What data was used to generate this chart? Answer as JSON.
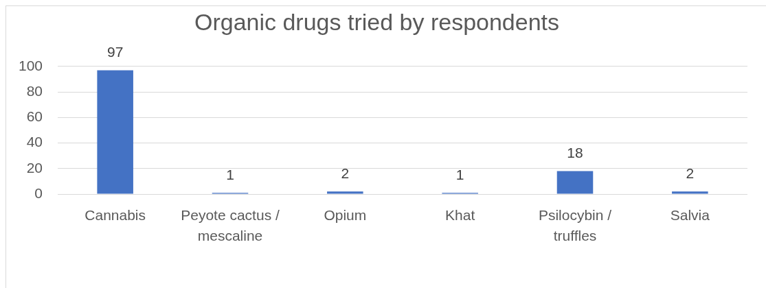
{
  "chart_data": {
    "type": "bar",
    "title": "Organic drugs tried by respondents",
    "categories": [
      "Cannabis",
      "Peyote cactus / mescaline",
      "Opium",
      "Khat",
      "Psilocybin / truffles",
      "Salvia"
    ],
    "values": [
      97,
      1,
      2,
      1,
      18,
      2
    ],
    "color": "#4472c4",
    "ylim": [
      0,
      100
    ],
    "yticks": [
      0,
      20,
      40,
      60,
      80,
      100
    ],
    "grid": "y",
    "data_labels": true
  }
}
